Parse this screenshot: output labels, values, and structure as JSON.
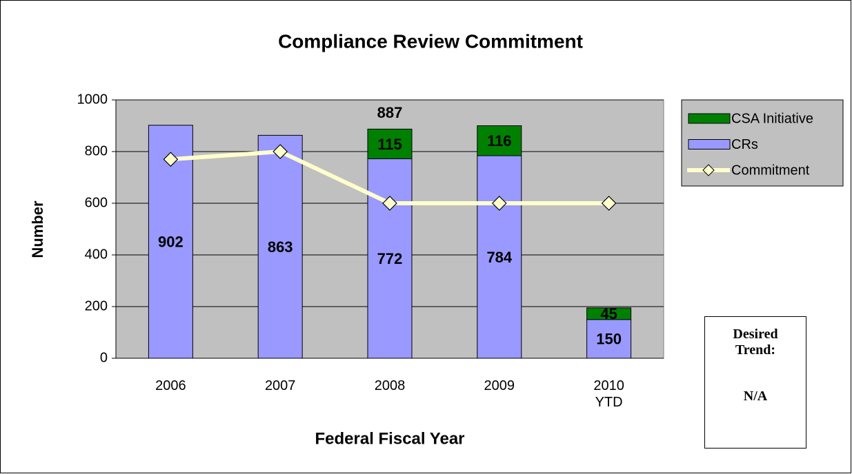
{
  "chart_data": {
    "type": "bar",
    "title": "Compliance Review Commitment",
    "x_label": "Federal Fiscal Year",
    "y_label": "Number",
    "categories": [
      "2006",
      "2007",
      "2008",
      "2009",
      "2010\nYTD"
    ],
    "series": [
      {
        "name": "CRs",
        "color": "#9999ff",
        "values": [
          902,
          863,
          772,
          784,
          150
        ]
      },
      {
        "name": "CSA Initiative",
        "color": "#008000",
        "values": [
          null,
          null,
          115,
          116,
          45
        ]
      },
      {
        "name": "Commitment",
        "type": "line",
        "color": "#ffffcc",
        "values": [
          770,
          800,
          600,
          600,
          600
        ]
      }
    ],
    "totals": [
      null,
      null,
      887,
      null,
      null
    ],
    "ylim": [
      0,
      1000
    ],
    "yticks": [
      0,
      200,
      400,
      600,
      800,
      1000
    ],
    "grid": true,
    "plot_background": "#c0c0c0",
    "legend": "right",
    "note": {
      "title": "Desired\nTrend:",
      "text": "N/A"
    }
  }
}
